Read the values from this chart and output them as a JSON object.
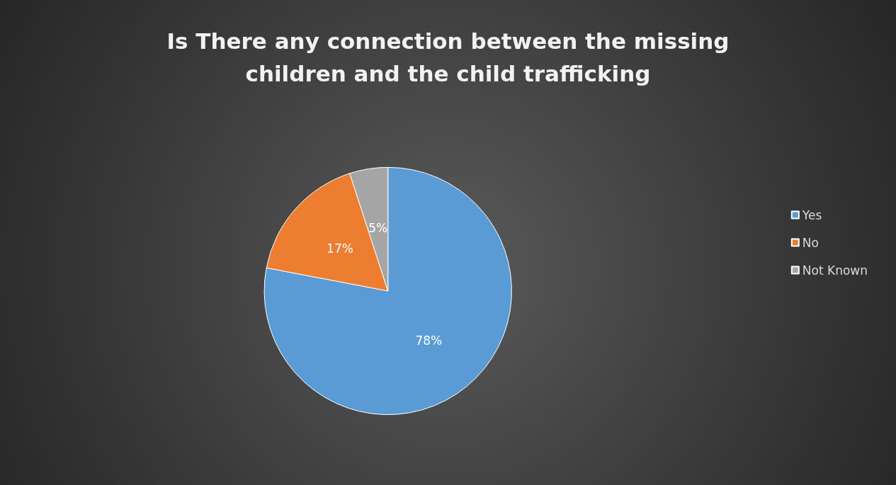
{
  "chart_data": {
    "type": "pie",
    "title": "Is There any connection between the missing\nchildren and the child trafficking",
    "categories": [
      "Yes",
      "No",
      "Not Known"
    ],
    "values": [
      78,
      17,
      5
    ],
    "value_labels": [
      "78%",
      "17%",
      "5%"
    ],
    "colors": [
      "#5b9bd5",
      "#ed7d31",
      "#a5a5a5"
    ],
    "legend": "right"
  }
}
